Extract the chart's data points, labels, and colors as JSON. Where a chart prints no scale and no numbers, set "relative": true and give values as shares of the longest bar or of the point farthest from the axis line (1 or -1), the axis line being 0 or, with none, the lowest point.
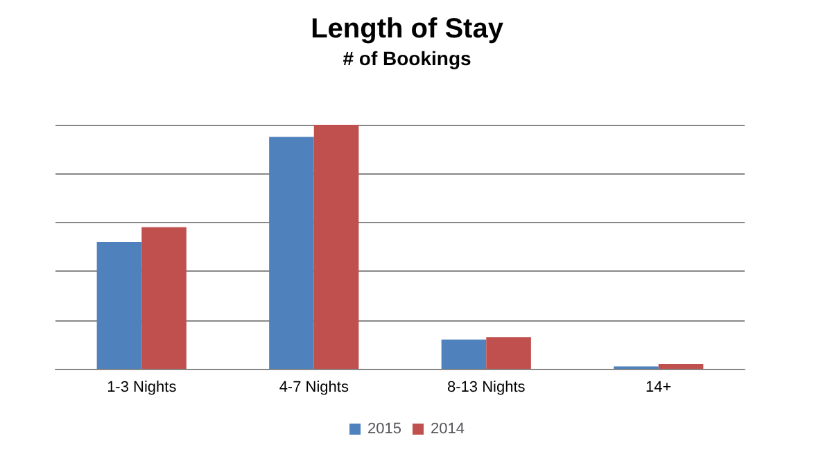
{
  "chart_data": {
    "type": "bar",
    "title": "Length of Stay",
    "subtitle": "# of Bookings",
    "relative": true,
    "categories": [
      "1-3 Nights",
      "4-7 Nights",
      "8-13 Nights",
      "14+"
    ],
    "series": [
      {
        "name": "2015",
        "color": "#4f81bd",
        "values": [
          0.52,
          0.95,
          0.12,
          0.01
        ]
      },
      {
        "name": "2014",
        "color": "#c0504d",
        "values": [
          0.58,
          1,
          0.13,
          0.02
        ]
      }
    ],
    "grid": "y",
    "legend": "bottom"
  }
}
